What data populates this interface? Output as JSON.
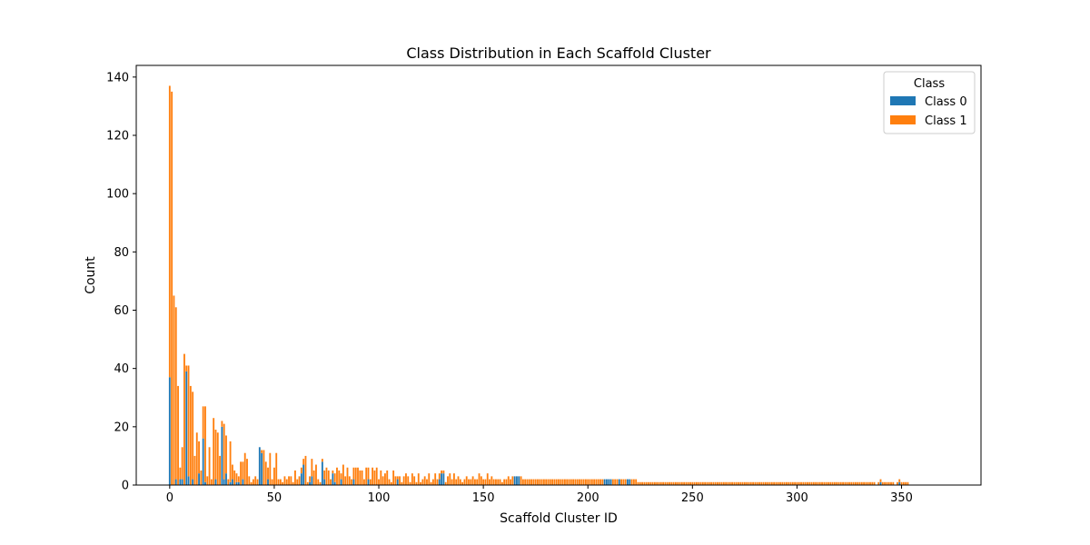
{
  "chart_data": {
    "type": "bar",
    "stacked": true,
    "title": "Class Distribution in Each Scaffold Cluster",
    "xlabel": "Scaffold Cluster ID",
    "ylabel": "Count",
    "xlim": [
      -16,
      388
    ],
    "ylim": [
      0,
      144
    ],
    "xticks": [
      0,
      50,
      100,
      150,
      200,
      250,
      300,
      350
    ],
    "yticks": [
      0,
      20,
      40,
      60,
      80,
      100,
      120,
      140
    ],
    "grid": false,
    "legend": {
      "title": "Class",
      "placement": "top-right"
    },
    "colors": {
      "class0": "#1f77b4",
      "class1": "#ff7f0e"
    },
    "num_clusters": 369,
    "series": [
      {
        "name": "Class 0",
        "values": [
          37,
          0,
          0,
          2,
          0,
          2,
          2,
          0,
          39,
          3,
          0,
          2,
          0,
          0,
          4,
          0,
          16,
          1,
          0,
          0,
          0,
          0,
          2,
          0,
          0,
          20,
          2,
          4,
          0,
          1,
          2,
          0,
          1,
          1,
          0,
          2,
          0,
          0,
          0,
          0,
          0,
          0,
          0,
          13,
          11,
          0,
          0,
          2,
          0,
          0,
          0,
          0,
          0,
          0,
          0,
          0,
          0,
          0,
          0,
          0,
          0,
          0,
          0,
          4,
          7,
          0,
          0,
          1,
          3,
          0,
          0,
          0,
          0,
          8,
          2,
          0,
          0,
          0,
          4,
          1,
          0,
          0,
          2,
          0,
          0,
          0,
          0,
          0,
          2,
          0,
          0,
          0,
          0,
          0,
          0,
          2,
          0,
          0,
          0,
          0,
          0,
          0,
          0,
          0,
          0,
          0,
          0,
          0,
          0,
          2,
          0,
          0,
          0,
          0,
          0,
          0,
          0,
          0,
          0,
          0,
          0,
          0,
          0,
          0,
          0,
          0,
          0,
          0,
          0,
          2,
          4,
          4,
          0,
          0,
          0,
          0,
          0,
          0,
          0,
          0,
          0,
          0,
          0,
          0,
          0,
          0,
          0,
          0,
          0,
          0,
          0,
          0,
          0,
          0,
          0,
          0,
          0,
          0,
          0,
          0,
          0,
          0,
          0,
          0,
          0,
          3,
          3,
          3,
          0,
          0,
          0,
          0,
          0,
          0,
          0,
          0,
          0,
          0,
          0,
          0,
          0,
          0,
          0,
          0,
          0,
          0,
          0,
          0,
          0,
          0,
          0,
          0,
          0,
          0,
          0,
          0,
          0,
          0,
          0,
          0,
          0,
          0,
          0,
          0,
          0,
          0,
          0,
          0,
          2,
          2,
          2,
          2,
          0,
          0,
          0,
          2,
          0,
          0,
          0,
          2,
          2,
          0,
          0,
          0,
          0,
          0,
          0,
          0,
          0,
          0,
          0,
          0,
          0,
          0,
          0,
          0,
          0,
          0,
          0,
          0,
          0,
          0,
          0,
          0,
          0,
          0,
          0,
          0,
          0,
          0,
          0,
          0,
          0,
          0,
          0,
          0,
          0,
          0,
          0,
          0,
          0,
          0,
          0,
          0,
          0,
          0,
          0,
          0,
          0,
          0,
          0,
          0,
          0,
          0,
          0,
          0,
          0,
          0,
          0,
          0,
          0,
          0,
          0,
          0,
          0,
          0,
          0,
          0,
          0,
          0,
          0,
          0,
          0,
          0,
          0,
          0,
          0,
          0,
          0,
          0,
          0,
          0,
          0,
          0,
          0,
          0,
          0,
          0,
          0,
          0,
          0,
          0,
          0,
          0,
          0,
          0,
          0,
          0,
          0,
          0,
          0,
          0,
          0,
          0,
          0,
          0,
          0,
          0,
          0,
          0,
          0,
          0,
          0,
          0,
          0,
          0,
          0,
          0,
          0,
          0,
          1,
          0,
          0,
          0,
          0,
          0,
          0,
          0,
          0,
          1,
          0,
          0,
          0,
          0,
          0,
          0
        ]
      },
      {
        "name": "Class 1",
        "values": [
          100,
          135,
          65,
          59,
          34,
          4,
          11,
          45,
          2,
          38,
          34,
          30,
          10,
          18,
          11,
          5,
          11,
          26,
          3,
          13,
          2,
          23,
          17,
          18,
          10,
          2,
          19,
          13,
          2,
          14,
          5,
          5,
          3,
          2,
          8,
          6,
          11,
          9,
          3,
          1,
          2,
          3,
          2,
          0,
          1,
          12,
          8,
          4,
          11,
          2,
          6,
          11,
          2,
          2,
          1,
          3,
          2,
          3,
          3,
          1,
          5,
          2,
          3,
          2,
          2,
          10,
          1,
          2,
          6,
          5,
          7,
          2,
          1,
          1,
          3,
          6,
          5,
          2,
          1,
          3,
          6,
          5,
          2,
          7,
          3,
          6,
          3,
          2,
          4,
          6,
          6,
          5,
          5,
          2,
          6,
          4,
          2,
          6,
          5,
          6,
          2,
          5,
          3,
          4,
          5,
          2,
          1,
          5,
          3,
          1,
          3,
          1,
          3,
          4,
          3,
          1,
          4,
          3,
          1,
          4,
          1,
          2,
          3,
          2,
          4,
          1,
          2,
          4,
          2,
          2,
          1,
          1,
          1,
          3,
          4,
          2,
          4,
          2,
          3,
          2,
          1,
          2,
          3,
          2,
          2,
          3,
          2,
          2,
          4,
          3,
          2,
          2,
          4,
          2,
          3,
          2,
          2,
          2,
          2,
          1,
          2,
          2,
          3,
          2,
          3,
          0,
          0,
          0,
          3,
          2,
          2,
          2,
          2,
          2,
          2,
          2,
          2,
          2,
          2,
          2,
          2,
          2,
          2,
          2,
          2,
          2,
          2,
          2,
          2,
          2,
          2,
          2,
          2,
          2,
          2,
          2,
          2,
          2,
          2,
          2,
          2,
          2,
          2,
          2,
          2,
          2,
          2,
          2,
          0,
          0,
          0,
          0,
          2,
          2,
          2,
          0,
          2,
          2,
          2,
          0,
          0,
          2,
          2,
          2,
          1,
          1,
          1,
          1,
          1,
          1,
          1,
          1,
          1,
          1,
          1,
          1,
          1,
          1,
          1,
          1,
          1,
          1,
          1,
          1,
          1,
          1,
          1,
          1,
          1,
          1,
          1,
          1,
          1,
          1,
          1,
          1,
          1,
          1,
          1,
          1,
          1,
          1,
          1,
          1,
          1,
          1,
          1,
          1,
          1,
          1,
          1,
          1,
          1,
          1,
          1,
          1,
          1,
          1,
          1,
          1,
          1,
          1,
          1,
          1,
          1,
          1,
          1,
          1,
          1,
          1,
          1,
          1,
          1,
          1,
          1,
          1,
          1,
          1,
          1,
          1,
          1,
          1,
          1,
          1,
          1,
          1,
          1,
          1,
          1,
          1,
          1,
          1,
          1,
          1,
          1,
          1,
          1,
          1,
          1,
          1,
          1,
          1,
          1,
          1,
          1,
          1,
          1,
          1,
          1,
          1,
          1,
          1,
          1,
          1,
          1,
          1,
          1,
          1,
          0,
          1,
          1,
          1,
          1,
          1,
          1,
          1,
          1,
          0,
          1,
          1,
          1,
          1,
          1,
          1
        ]
      }
    ]
  }
}
